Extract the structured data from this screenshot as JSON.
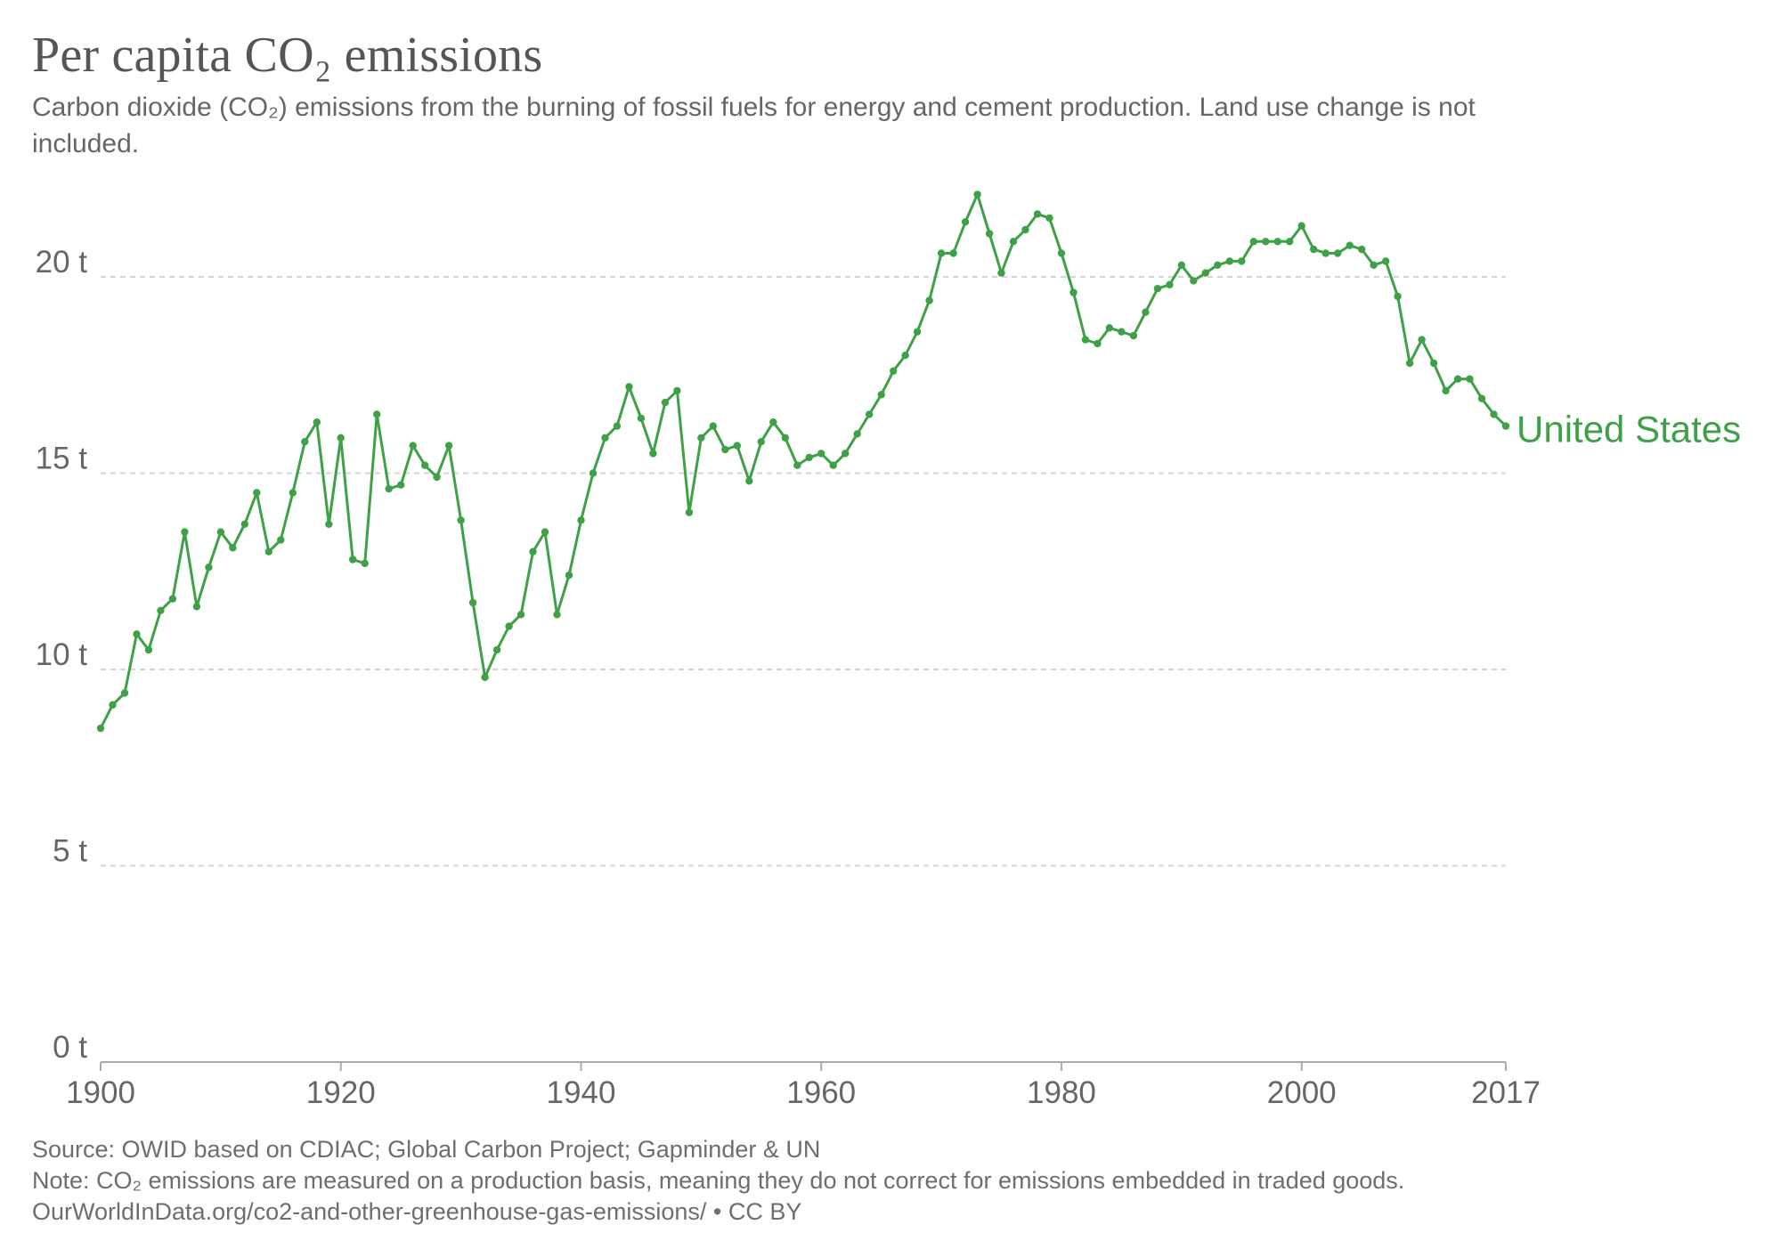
{
  "title": "Per capita CO₂ emissions",
  "subtitle": "Carbon dioxide (CO₂) emissions from the burning of fossil fuels for energy and cement production. Land use change is not included.",
  "footer": {
    "source": "Source: OWID based on CDIAC; Global Carbon Project; Gapminder & UN",
    "note": "Note: CO₂ emissions are measured on a production basis, meaning they do not correct for emissions embedded in traded goods.",
    "url": "OurWorldInData.org/co2-and-other-greenhouse-gas-emissions/ • CC BY"
  },
  "colors": {
    "series": "#3fa147",
    "grid": "#d4d4d4",
    "axis_text": "#666666",
    "axis_line": "#aaaaaa"
  },
  "chart_data": {
    "type": "line",
    "title": "Per capita CO₂ emissions",
    "xlabel": "",
    "ylabel": "",
    "xlim": [
      1900,
      2017
    ],
    "ylim": [
      0,
      22.5
    ],
    "x_ticks": [
      1900,
      1920,
      1940,
      1960,
      1980,
      2000,
      2017
    ],
    "y_ticks": [
      {
        "value": 0,
        "label": "0 t"
      },
      {
        "value": 5,
        "label": "5 t"
      },
      {
        "value": 10,
        "label": "10 t"
      },
      {
        "value": 15,
        "label": "15 t"
      },
      {
        "value": 20,
        "label": "20 t"
      }
    ],
    "grid": true,
    "markers": true,
    "series": [
      {
        "name": "United States",
        "x": [
          1900,
          1901,
          1902,
          1903,
          1904,
          1905,
          1906,
          1907,
          1908,
          1909,
          1910,
          1911,
          1912,
          1913,
          1914,
          1915,
          1916,
          1917,
          1918,
          1919,
          1920,
          1921,
          1922,
          1923,
          1924,
          1925,
          1926,
          1927,
          1928,
          1929,
          1930,
          1931,
          1932,
          1933,
          1934,
          1935,
          1936,
          1937,
          1938,
          1939,
          1940,
          1941,
          1942,
          1943,
          1944,
          1945,
          1946,
          1947,
          1948,
          1949,
          1950,
          1951,
          1952,
          1953,
          1954,
          1955,
          1956,
          1957,
          1958,
          1959,
          1960,
          1961,
          1962,
          1963,
          1964,
          1965,
          1966,
          1967,
          1968,
          1969,
          1970,
          1971,
          1972,
          1973,
          1974,
          1975,
          1976,
          1977,
          1978,
          1979,
          1980,
          1981,
          1982,
          1983,
          1984,
          1985,
          1986,
          1987,
          1988,
          1989,
          1990,
          1991,
          1992,
          1993,
          1994,
          1995,
          1996,
          1997,
          1998,
          1999,
          2000,
          2001,
          2002,
          2003,
          2004,
          2005,
          2006,
          2007,
          2008,
          2009,
          2010,
          2011,
          2012,
          2013,
          2014,
          2015,
          2016,
          2017
        ],
        "values": [
          8.5,
          9.1,
          9.4,
          10.9,
          10.5,
          11.5,
          11.8,
          13.5,
          11.6,
          12.6,
          13.5,
          13.1,
          13.7,
          14.5,
          13.0,
          13.3,
          14.5,
          15.8,
          16.3,
          13.7,
          15.9,
          12.8,
          12.7,
          16.5,
          14.6,
          14.7,
          15.7,
          15.2,
          14.9,
          15.7,
          13.8,
          11.7,
          9.8,
          10.5,
          11.1,
          11.4,
          13.0,
          13.5,
          11.4,
          12.4,
          13.8,
          15.0,
          15.9,
          16.2,
          17.2,
          16.4,
          15.5,
          16.8,
          17.1,
          14.0,
          15.9,
          16.2,
          15.6,
          15.7,
          14.8,
          15.8,
          16.3,
          15.9,
          15.2,
          15.4,
          15.5,
          15.2,
          15.5,
          16.0,
          16.5,
          17.0,
          17.6,
          18.0,
          18.6,
          19.4,
          20.6,
          20.6,
          21.4,
          22.1,
          21.1,
          20.1,
          20.9,
          21.2,
          21.6,
          21.5,
          20.6,
          19.6,
          18.4,
          18.3,
          18.7,
          18.6,
          18.5,
          19.1,
          19.7,
          19.8,
          20.3,
          19.9,
          20.1,
          20.3,
          20.4,
          20.4,
          20.9,
          20.9,
          20.9,
          20.9,
          21.3,
          20.7,
          20.6,
          20.6,
          20.8,
          20.7,
          20.3,
          20.4,
          19.5,
          17.8,
          18.4,
          17.8,
          17.1,
          17.4,
          17.4,
          16.9,
          16.5,
          16.2
        ]
      }
    ]
  }
}
